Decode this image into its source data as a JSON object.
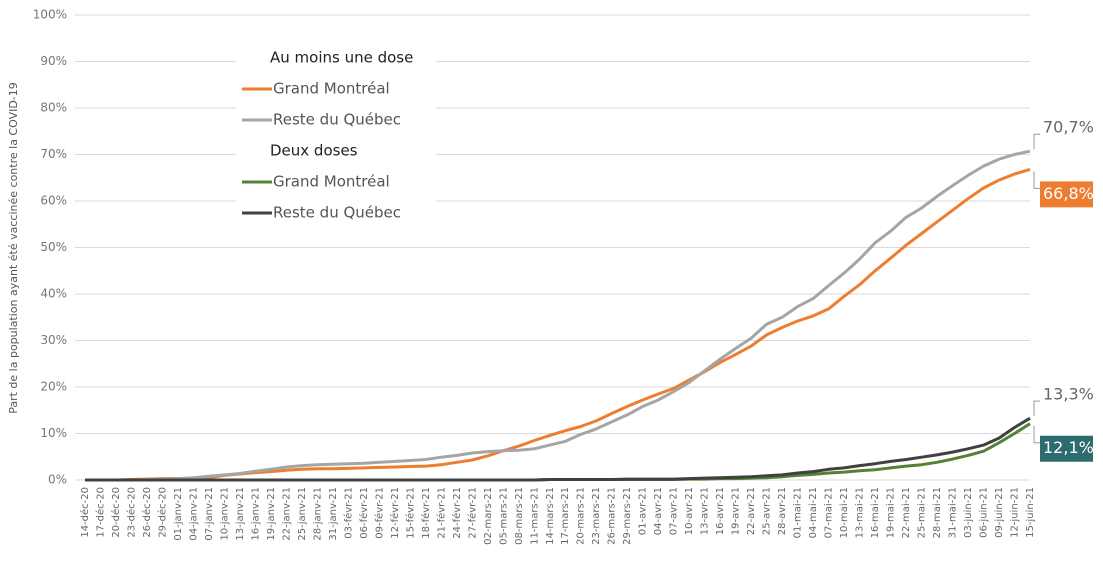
{
  "chart_data": {
    "type": "line",
    "y_label": "Part de la population ayant été vaccinée contre la COVID-19",
    "categories": [
      "14-déc-20",
      "17-déc-20",
      "20-déc-20",
      "23-déc-20",
      "26-déc-20",
      "29-déc-20",
      "01-janv-21",
      "04-janv-21",
      "07-janv-21",
      "10-janv-21",
      "13-janv-21",
      "16-janv-21",
      "19-janv-21",
      "22-janv-21",
      "25-janv-21",
      "28-janv-21",
      "31-janv-21",
      "03-févr-21",
      "06-févr-21",
      "09-févr-21",
      "12-févr-21",
      "15-févr-21",
      "18-févr-21",
      "21-févr-21",
      "24-févr-21",
      "27-févr-21",
      "02-mars-21",
      "05-mars-21",
      "08-mars-21",
      "11-mars-21",
      "14-mars-21",
      "17-mars-21",
      "20-mars-21",
      "23-mars-21",
      "26-mars-21",
      "29-mars-21",
      "01-avr-21",
      "04-avr-21",
      "07-avr-21",
      "10-avr-21",
      "13-avr-21",
      "16-avr-21",
      "19-avr-21",
      "22-avr-21",
      "25-avr-21",
      "28-avr-21",
      "01-mai-21",
      "04-mai-21",
      "07-mai-21",
      "10-mai-21",
      "13-mai-21",
      "16-mai-21",
      "19-mai-21",
      "22-mai-21",
      "25-mai-21",
      "28-mai-21",
      "31-mai-21",
      "03-juin-21",
      "06-juin-21",
      "09-juin-21",
      "12-juin-21",
      "15-juin-21"
    ],
    "legend_groups": [
      "Au moins une dose",
      "Deux doses"
    ],
    "series": [
      {
        "name": "Grand Montréal",
        "color": "#ed7d31",
        "label_box": "#ed7d31",
        "values": [
          0,
          0,
          0,
          0.1,
          0.2,
          0.3,
          0.3,
          0.3,
          0.5,
          1.0,
          1.3,
          1.6,
          1.8,
          2.1,
          2.3,
          2.4,
          2.4,
          2.5,
          2.6,
          2.7,
          2.8,
          2.9,
          3.0,
          3.3,
          3.8,
          4.3,
          5.2,
          6.3,
          7.3,
          8.5,
          9.6,
          10.6,
          11.5,
          12.7,
          14.3,
          15.8,
          17.2,
          18.5,
          19.7,
          21.5,
          23.3,
          25.3,
          27.0,
          28.8,
          31.2,
          32.8,
          34.2,
          35.3,
          36.8,
          39.5,
          42.0,
          45.0,
          47.7,
          50.5,
          53.0,
          55.5,
          58.0,
          60.5,
          62.8,
          64.5,
          65.8,
          66.8
        ],
        "value_labels": [
          null,
          null,
          null,
          null,
          null,
          null,
          null,
          null,
          null,
          null,
          null,
          null,
          null,
          null,
          null,
          null,
          null,
          null,
          null,
          null,
          null,
          null,
          null,
          null,
          null,
          null,
          null,
          null,
          null,
          null,
          null,
          null,
          null,
          null,
          null,
          null,
          null,
          null,
          null,
          null,
          null,
          null,
          null,
          null,
          null,
          null,
          null,
          null,
          null,
          null,
          null,
          null,
          null,
          null,
          null,
          null,
          null,
          null,
          null,
          null,
          null,
          "66,8%"
        ]
      },
      {
        "name": "Reste du Québec",
        "color": "#a5a5a5",
        "values": [
          0,
          0,
          0,
          0,
          0.1,
          0.2,
          0.3,
          0.5,
          0.8,
          1.1,
          1.4,
          1.9,
          2.3,
          2.8,
          3.1,
          3.3,
          3.4,
          3.5,
          3.6,
          3.8,
          4.0,
          4.2,
          4.4,
          4.9,
          5.3,
          5.8,
          6.1,
          6.3,
          6.4,
          6.7,
          7.5,
          8.3,
          9.8,
          11.0,
          12.5,
          14.0,
          15.8,
          17.2,
          19.0,
          21.0,
          23.5,
          26.0,
          28.3,
          30.5,
          33.5,
          35.0,
          37.3,
          39.0,
          41.8,
          44.5,
          47.5,
          51.0,
          53.5,
          56.5,
          58.5,
          61.0,
          63.3,
          65.5,
          67.5,
          69.0,
          70.0,
          70.7
        ],
        "value_labels": [
          null,
          null,
          null,
          null,
          null,
          null,
          null,
          null,
          null,
          null,
          null,
          null,
          null,
          null,
          null,
          null,
          null,
          null,
          null,
          null,
          null,
          null,
          null,
          null,
          null,
          null,
          null,
          null,
          null,
          null,
          null,
          null,
          null,
          null,
          null,
          null,
          null,
          null,
          null,
          null,
          null,
          null,
          null,
          null,
          null,
          null,
          null,
          null,
          null,
          null,
          null,
          null,
          null,
          null,
          null,
          null,
          null,
          null,
          null,
          null,
          null,
          "70,7%"
        ]
      },
      {
        "name": "Grand Montréal",
        "color": "#548235",
        "label_box": "#2e6b6e",
        "values": [
          0,
          0,
          0,
          0,
          0,
          0,
          0,
          0,
          0,
          0,
          0,
          0,
          0,
          0,
          0,
          0,
          0,
          0,
          0,
          0,
          0,
          0,
          0,
          0,
          0,
          0,
          0,
          0,
          0,
          0,
          0.1,
          0.1,
          0.1,
          0.1,
          0.1,
          0.1,
          0.1,
          0.1,
          0.1,
          0.2,
          0.2,
          0.3,
          0.3,
          0.4,
          0.5,
          0.7,
          1.0,
          1.2,
          1.5,
          1.7,
          2.0,
          2.2,
          2.6,
          3.0,
          3.3,
          3.8,
          4.5,
          5.3,
          6.2,
          8.0,
          10.0,
          12.1
        ],
        "value_labels": [
          null,
          null,
          null,
          null,
          null,
          null,
          null,
          null,
          null,
          null,
          null,
          null,
          null,
          null,
          null,
          null,
          null,
          null,
          null,
          null,
          null,
          null,
          null,
          null,
          null,
          null,
          null,
          null,
          null,
          null,
          null,
          null,
          null,
          null,
          null,
          null,
          null,
          null,
          null,
          null,
          null,
          null,
          null,
          null,
          null,
          null,
          null,
          null,
          null,
          null,
          null,
          null,
          null,
          null,
          null,
          null,
          null,
          null,
          null,
          null,
          null,
          "12,1%"
        ]
      },
      {
        "name": "Reste du Québec",
        "color": "#404040",
        "values": [
          0,
          0,
          0,
          0,
          0,
          0,
          0,
          0,
          0,
          0,
          0,
          0,
          0,
          0,
          0,
          0,
          0,
          0,
          0,
          0,
          0,
          0,
          0,
          0,
          0,
          0,
          0,
          0,
          0,
          0,
          0.1,
          0.1,
          0.1,
          0.1,
          0.1,
          0.2,
          0.2,
          0.2,
          0.2,
          0.3,
          0.4,
          0.5,
          0.6,
          0.7,
          0.9,
          1.1,
          1.5,
          1.8,
          2.3,
          2.6,
          3.1,
          3.5,
          4.0,
          4.4,
          4.9,
          5.4,
          6.0,
          6.7,
          7.5,
          9.0,
          11.3,
          13.3
        ],
        "value_labels": [
          null,
          null,
          null,
          null,
          null,
          null,
          null,
          null,
          null,
          null,
          null,
          null,
          null,
          null,
          null,
          null,
          null,
          null,
          null,
          null,
          null,
          null,
          null,
          null,
          null,
          null,
          null,
          null,
          null,
          null,
          null,
          null,
          null,
          null,
          null,
          null,
          null,
          null,
          null,
          null,
          null,
          null,
          null,
          null,
          null,
          null,
          null,
          null,
          null,
          null,
          null,
          null,
          null,
          null,
          null,
          null,
          null,
          null,
          null,
          null,
          null,
          "13,3%"
        ]
      }
    ],
    "ylim": [
      0,
      100
    ],
    "yticks": [
      {
        "value": 0,
        "label": "0%"
      },
      {
        "value": 10,
        "label": "10%"
      },
      {
        "value": 20,
        "label": "20%"
      },
      {
        "value": 30,
        "label": "30%"
      },
      {
        "value": 40,
        "label": "40%"
      },
      {
        "value": 50,
        "label": "50%"
      },
      {
        "value": 60,
        "label": "60%"
      },
      {
        "value": 70,
        "label": "70%"
      },
      {
        "value": 80,
        "label": "80%"
      },
      {
        "value": 90,
        "label": "90%"
      },
      {
        "value": 100,
        "label": "100%"
      }
    ],
    "grid": true
  }
}
